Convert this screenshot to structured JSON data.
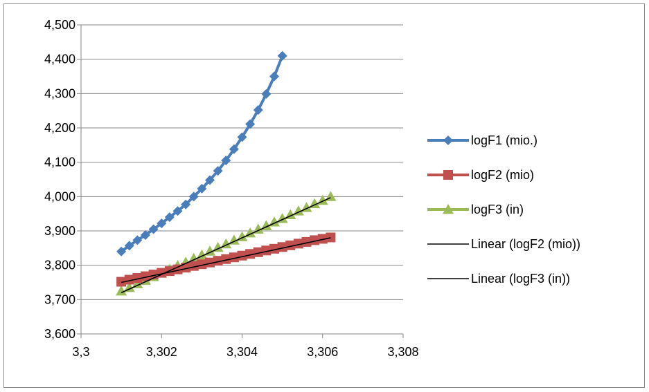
{
  "chart_data": {
    "type": "scatter",
    "title": "",
    "xlabel": "",
    "ylabel": "",
    "xlim": [
      3.3,
      3.308
    ],
    "ylim": [
      3.6,
      4.5
    ],
    "x_ticks": [
      3.3,
      3.302,
      3.304,
      3.306,
      3.308
    ],
    "x_tick_labels": [
      "3,3",
      "3,302",
      "3,304",
      "3,306",
      "3,308"
    ],
    "y_ticks": [
      3.6,
      3.7,
      3.8,
      3.9,
      4.0,
      4.1,
      4.2,
      4.3,
      4.4,
      4.5
    ],
    "y_tick_labels": [
      "3,600",
      "3,700",
      "3,800",
      "3,900",
      "4,000",
      "4,100",
      "4,200",
      "4,300",
      "4,400",
      "4,500"
    ],
    "grid": "horizontal",
    "legend_position": "right",
    "series": [
      {
        "name": "logF1 (mio.)",
        "color": "#4A7EBB",
        "marker": "diamond",
        "line": true,
        "x": [
          3.301,
          3.3012,
          3.3014,
          3.3016,
          3.3018,
          3.302,
          3.3022,
          3.3024,
          3.3026,
          3.3028,
          3.303,
          3.3032,
          3.3034,
          3.3036,
          3.3038,
          3.304,
          3.3042,
          3.3044,
          3.3046,
          3.3048,
          3.305
        ],
        "y": [
          3.84,
          3.857,
          3.873,
          3.888,
          3.905,
          3.922,
          3.94,
          3.958,
          3.977,
          4.0,
          4.023,
          4.048,
          4.075,
          4.105,
          4.138,
          4.173,
          4.211,
          4.252,
          4.299,
          4.35,
          4.41
        ]
      },
      {
        "name": "logF2 (mio)",
        "color": "#C0504D",
        "marker": "square",
        "line": false,
        "x": [
          3.301,
          3.3012,
          3.3014,
          3.3016,
          3.3018,
          3.302,
          3.3022,
          3.3024,
          3.3026,
          3.3028,
          3.303,
          3.3032,
          3.3034,
          3.3036,
          3.3038,
          3.304,
          3.3042,
          3.3044,
          3.3046,
          3.3048,
          3.305,
          3.3052,
          3.3054,
          3.3056,
          3.3058,
          3.306,
          3.3062
        ],
        "y": [
          3.752,
          3.758,
          3.763,
          3.768,
          3.773,
          3.778,
          3.783,
          3.788,
          3.793,
          3.798,
          3.803,
          3.808,
          3.813,
          3.818,
          3.823,
          3.828,
          3.833,
          3.838,
          3.843,
          3.848,
          3.853,
          3.858,
          3.863,
          3.868,
          3.873,
          3.877,
          3.881
        ]
      },
      {
        "name": "logF3 (in)",
        "color": "#9BBB59",
        "marker": "triangle",
        "line": false,
        "x": [
          3.301,
          3.3012,
          3.3014,
          3.3016,
          3.3018,
          3.302,
          3.3022,
          3.3024,
          3.3026,
          3.3028,
          3.303,
          3.3032,
          3.3034,
          3.3036,
          3.3038,
          3.304,
          3.3042,
          3.3044,
          3.3046,
          3.3048,
          3.305,
          3.3052,
          3.3054,
          3.3056,
          3.3058,
          3.306,
          3.3062
        ],
        "y": [
          3.725,
          3.735,
          3.746,
          3.756,
          3.767,
          3.777,
          3.788,
          3.799,
          3.809,
          3.82,
          3.83,
          3.841,
          3.852,
          3.862,
          3.873,
          3.883,
          3.894,
          3.905,
          3.915,
          3.926,
          3.936,
          3.947,
          3.958,
          3.968,
          3.979,
          3.989,
          4.0
        ]
      },
      {
        "name": "Linear (logF2 (mio))",
        "color": "#000000",
        "marker": "none",
        "line": true,
        "x": [
          3.301,
          3.3062
        ],
        "y": [
          3.75,
          3.88
        ]
      },
      {
        "name": "Linear (logF3 (in))",
        "color": "#000000",
        "marker": "none",
        "line": true,
        "x": [
          3.301,
          3.3062
        ],
        "y": [
          3.72,
          3.997
        ]
      }
    ]
  }
}
